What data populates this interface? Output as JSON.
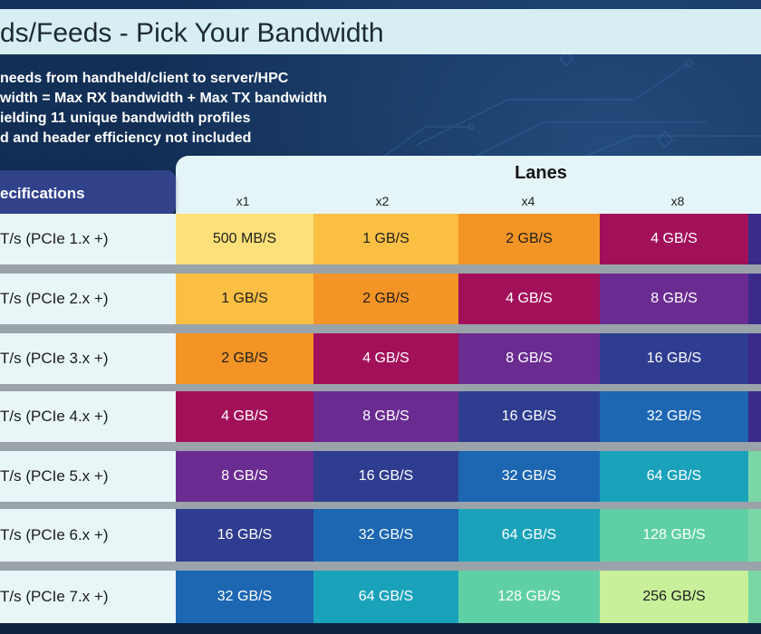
{
  "title": "ds/Feeds - Pick Your Bandwidth",
  "bullets": [
    "needs from handheld/client to server/HPC",
    "width = Max RX bandwidth + Max TX bandwidth",
    "ielding 11 unique bandwidth profiles",
    "d and header efficiency not included"
  ],
  "table": {
    "lanes_title": "Lanes",
    "spec_header": "ecifications",
    "columns": [
      "x1",
      "x2",
      "x4",
      "x8"
    ],
    "rows": [
      {
        "label": "T/s (PCIe 1.x +)",
        "cells": [
          "500 MB/S",
          "1 GB/S",
          "2 GB/S",
          "4 GB/S"
        ]
      },
      {
        "label": "T/s (PCIe 2.x +)",
        "cells": [
          "1 GB/S",
          "2 GB/S",
          "4 GB/S",
          "8 GB/S"
        ]
      },
      {
        "label": "T/s (PCIe 3.x +)",
        "cells": [
          "2 GB/S",
          "4 GB/S",
          "8 GB/S",
          "16 GB/S"
        ]
      },
      {
        "label": "T/s (PCIe 4.x +)",
        "cells": [
          "4 GB/S",
          "8 GB/S",
          "16 GB/S",
          "32 GB/S"
        ]
      },
      {
        "label": "T/s (PCIe 5.x +)",
        "cells": [
          "8 GB/S",
          "16 GB/S",
          "32 GB/S",
          "64 GB/S"
        ]
      },
      {
        "label": "T/s (PCIe 6.x +)",
        "cells": [
          "16 GB/S",
          "32 GB/S",
          "64 GB/S",
          "128 GB/S"
        ]
      },
      {
        "label": "T/s (PCIe 7.x +)",
        "cells": [
          "32 GB/S",
          "64 GB/S",
          "128 GB/S",
          "256 GB/S"
        ]
      }
    ]
  },
  "colors": {
    "500 MB/S": "#fde079",
    "1 GB/S": "#fbbf43",
    "2 GB/S": "#f39426",
    "4 GB/S": "#a3105a",
    "8 GB/S": "#6a2c91",
    "16 GB/S": "#2e3d8f",
    "32 GB/S": "#1c66b2",
    "64 GB/S": "#1ba2bb",
    "128 GB/S": "#5fd0a5",
    "256 GB/S": "#c8ef9a",
    "next-col-dark": "#3a2b8a",
    "next-col-green": "#7ad7a5"
  }
}
